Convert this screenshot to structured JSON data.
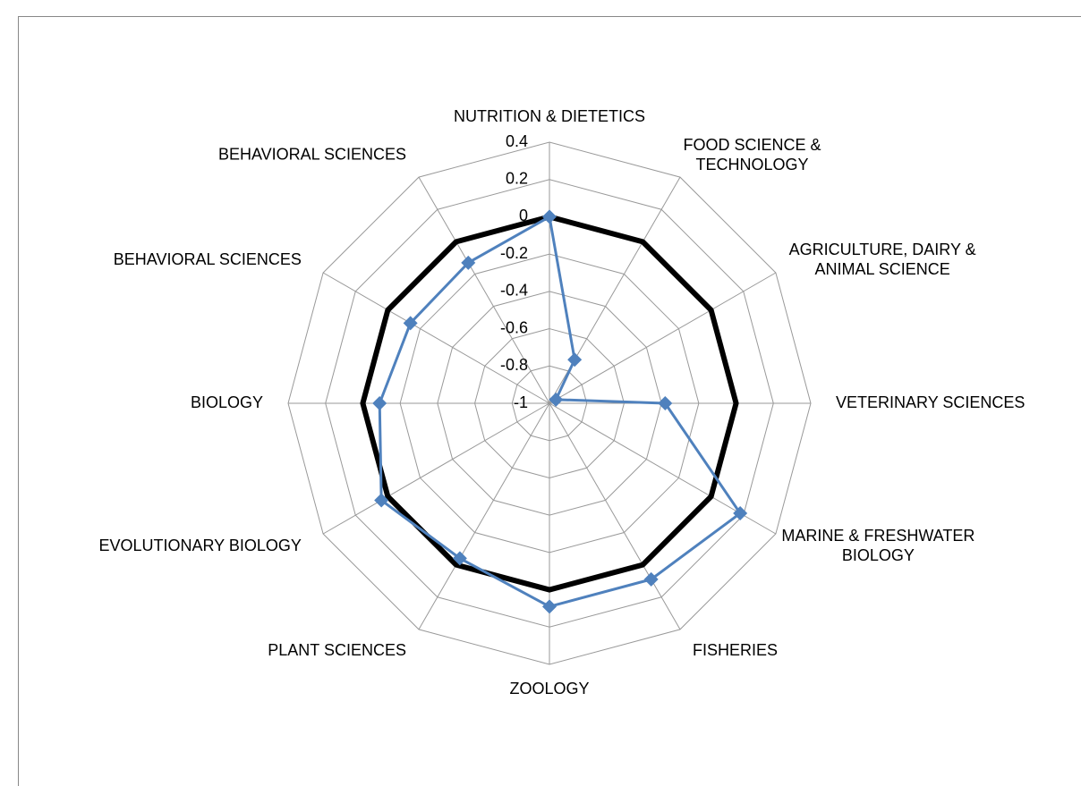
{
  "chart_data": {
    "type": "radar",
    "categories": [
      "NUTRITION & DIETETICS",
      "FOOD SCIENCE & TECHNOLOGY",
      "AGRICULTURE, DAIRY & ANIMAL SCIENCE",
      "VETERINARY SCIENCES",
      "MARINE & FRESHWATER BIOLOGY",
      "FISHERIES",
      "ZOOLOGY",
      "PLANT SCIENCES",
      "EVOLUTIONARY BIOLOGY",
      "BIOLOGY",
      "BEHAVIORAL SCIENCES",
      "BEHAVIORAL SCIENCES"
    ],
    "series": [
      {
        "color": "#000000",
        "values": [
          0,
          0,
          0,
          0,
          0,
          0,
          0,
          0,
          0,
          0,
          0,
          0
        ]
      },
      {
        "color": "#4f81bd",
        "values": [
          0,
          -0.73,
          -0.96,
          -0.38,
          0.18,
          0.09,
          0.09,
          -0.04,
          0.04,
          -0.09,
          -0.14,
          -0.13
        ]
      }
    ],
    "ylim": [
      -1,
      0.4
    ],
    "yticks": [
      -1,
      -0.8,
      -0.6,
      -0.4,
      -0.2,
      0,
      0.2,
      0.4
    ],
    "grid": true
  }
}
